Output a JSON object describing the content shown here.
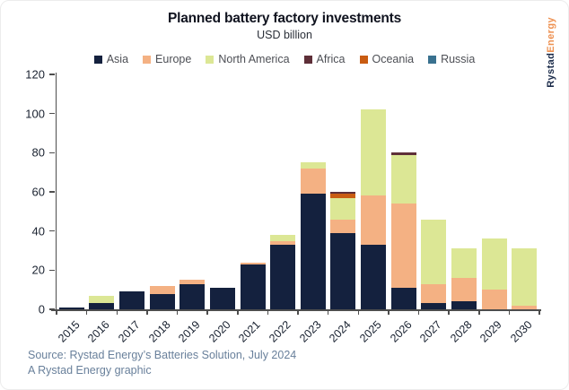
{
  "title": "Planned battery factory investments",
  "subtitle": "USD billion",
  "brand": {
    "part1": "Rystad",
    "part2": "Energy"
  },
  "legend": [
    {
      "label": "Asia",
      "color": "#14213e"
    },
    {
      "label": "Europe",
      "color": "#f4b183"
    },
    {
      "label": "North America",
      "color": "#dce795"
    },
    {
      "label": "Africa",
      "color": "#5e2f38"
    },
    {
      "label": "Oceania",
      "color": "#c95c12"
    },
    {
      "label": "Russia",
      "color": "#39718f"
    }
  ],
  "chart_data": {
    "type": "bar",
    "stacked": true,
    "title": "Planned battery factory investments",
    "subtitle": "USD billion",
    "unit": "USD billion",
    "categories": [
      "2015",
      "2016",
      "2017",
      "2018",
      "2019",
      "2020",
      "2021",
      "2022",
      "2023",
      "2024",
      "2025",
      "2026",
      "2027",
      "2028",
      "2029",
      "2030"
    ],
    "series": [
      {
        "name": "Asia",
        "color": "#14213e",
        "values": [
          1,
          3,
          9,
          8,
          13,
          11,
          23,
          33,
          59,
          39,
          33,
          11,
          3,
          4,
          0,
          0
        ]
      },
      {
        "name": "Europe",
        "color": "#f4b183",
        "values": [
          0,
          0,
          0,
          4,
          2,
          0,
          1,
          2,
          13,
          7,
          25,
          43,
          10,
          12,
          10,
          2
        ]
      },
      {
        "name": "North America",
        "color": "#dce795",
        "values": [
          0,
          4,
          0,
          0,
          0,
          0,
          0,
          3,
          3,
          11,
          44,
          25,
          33,
          15,
          26,
          29
        ]
      },
      {
        "name": "Africa",
        "color": "#5e2f38",
        "values": [
          0,
          0,
          0,
          0,
          0,
          0,
          0,
          0,
          0,
          1,
          0,
          1,
          0,
          0,
          0,
          0
        ]
      },
      {
        "name": "Oceania",
        "color": "#c95c12",
        "values": [
          0,
          0,
          0,
          0,
          0,
          0,
          0,
          0,
          0,
          2,
          0,
          0,
          0,
          0,
          0,
          0
        ]
      },
      {
        "name": "Russia",
        "color": "#39718f",
        "values": [
          0,
          0,
          0,
          0,
          0,
          0,
          0,
          0,
          0,
          0,
          0,
          0,
          0,
          0,
          0,
          0
        ]
      }
    ],
    "stack_order": [
      "Asia",
      "Europe",
      "North America",
      "Oceania",
      "Africa",
      "Russia"
    ],
    "totals": [
      1,
      7,
      9,
      12,
      15,
      11,
      24,
      38,
      75,
      60,
      102,
      80,
      46,
      31,
      36,
      31
    ],
    "ylim": [
      0,
      120
    ],
    "yticks": [
      0,
      20,
      40,
      60,
      80,
      100,
      120
    ],
    "grid": false,
    "legend_position": "top"
  },
  "source": {
    "line1": "Source: Rystad Energy’s Batteries Solution, July 2024",
    "line2": "A Rystad Energy graphic"
  }
}
